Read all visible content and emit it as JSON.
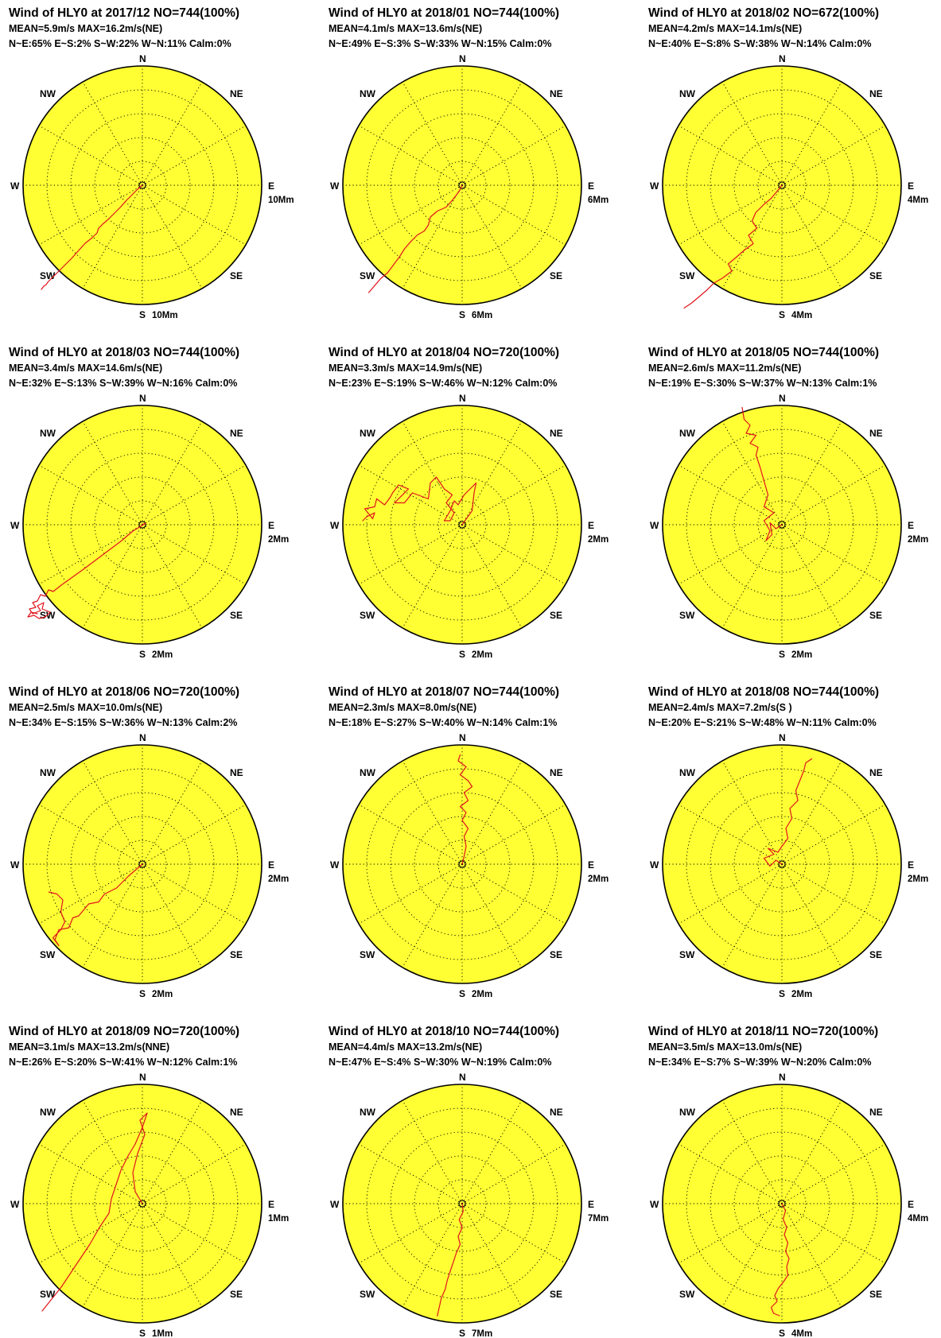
{
  "chart_data": {
    "type": "polar",
    "direction_labels": [
      "N",
      "NE",
      "E",
      "SE",
      "S",
      "SW",
      "W",
      "NW"
    ],
    "charts": [
      {
        "title": "Wind of HLY0 at 2017/12 NO=744(100%)",
        "stats": "MEAN=5.9m/s MAX=16.2m/s(NE)",
        "sectors": "N~E:65% E~S:2% S~W:22% W~N:11% Calm:0%",
        "scale_label": "10Mm",
        "rlim": [
          0,
          15
        ],
        "grid": "rings every 3 Mm, radials every 30 deg",
        "trajectory": [
          [
            0,
            0
          ],
          [
            -0.6,
            -0.5
          ],
          [
            -1.2,
            -1.1
          ],
          [
            -2,
            -1.9
          ],
          [
            -2.8,
            -2.8
          ],
          [
            -3.7,
            -3.7
          ],
          [
            -4.3,
            -4.3
          ],
          [
            -5,
            -4.9
          ],
          [
            -5.5,
            -5.4
          ],
          [
            -5.7,
            -6
          ],
          [
            -6.3,
            -6.6
          ],
          [
            -7.2,
            -7.3
          ],
          [
            -8,
            -8.2
          ],
          [
            -8.9,
            -9.2
          ],
          [
            -9.7,
            -10
          ],
          [
            -10.4,
            -10.7
          ],
          [
            -11.1,
            -11.4
          ],
          [
            -11.7,
            -12
          ],
          [
            -11.9,
            -12.2
          ],
          [
            -12.1,
            -12.5
          ],
          [
            -12.4,
            -12.7
          ],
          [
            -12.7,
            -13.1
          ]
        ]
      },
      {
        "title": "Wind of HLY0 at 2018/01 NO=744(100%)",
        "stats": "MEAN=4.1m/s MAX=13.6m/s(NE)",
        "sectors": "N~E:49% E~S:3% S~W:33% W~N:15% Calm:0%",
        "scale_label": "6Mm",
        "rlim": [
          0,
          12
        ],
        "grid": "rings every 2.4 Mm, radials every 30 deg",
        "trajectory": [
          [
            0,
            0
          ],
          [
            -0.3,
            -0.6
          ],
          [
            -0.9,
            -1.4
          ],
          [
            -1.6,
            -2.2
          ],
          [
            -2.5,
            -2.6
          ],
          [
            -3.2,
            -3.2
          ],
          [
            -3.4,
            -4
          ],
          [
            -3.8,
            -4.6
          ],
          [
            -4.5,
            -5
          ],
          [
            -5.2,
            -5.7
          ],
          [
            -5.8,
            -6.4
          ],
          [
            -6.3,
            -7.2
          ],
          [
            -6.9,
            -8
          ],
          [
            -7.5,
            -8.8
          ],
          [
            -8.2,
            -9.4
          ],
          [
            -8.8,
            -10.1
          ],
          [
            -9.4,
            -10.8
          ]
        ]
      },
      {
        "title": "Wind of HLY0 at 2018/02 NO=672(100%)",
        "stats": "MEAN=4.2m/s MAX=14.1m/s(NE)",
        "sectors": "N~E:40% E~S:8% S~W:38% W~N:14% Calm:0%",
        "scale_label": "4Mm",
        "rlim": [
          0,
          10
        ],
        "grid": "rings every 2 Mm, radials every 30 deg",
        "trajectory": [
          [
            0,
            0
          ],
          [
            -0.4,
            -0.5
          ],
          [
            -0.9,
            -1.1
          ],
          [
            -1.5,
            -1.6
          ],
          [
            -2.2,
            -2.3
          ],
          [
            -2.5,
            -3
          ],
          [
            -2.1,
            -3.6
          ],
          [
            -2.8,
            -4.2
          ],
          [
            -2.4,
            -4.9
          ],
          [
            -3.1,
            -5.4
          ],
          [
            -3.9,
            -6.1
          ],
          [
            -4.5,
            -6.6
          ],
          [
            -4.2,
            -7.2
          ],
          [
            -5,
            -7.8
          ],
          [
            -5.7,
            -8.2
          ],
          [
            -6.3,
            -8.8
          ],
          [
            -7,
            -9.4
          ],
          [
            -7.6,
            -9.9
          ],
          [
            -8.2,
            -10.3
          ]
        ]
      },
      {
        "title": "Wind of HLY0 at 2018/03 NO=744(100%)",
        "stats": "MEAN=3.4m/s MAX=14.6m/s(NE)",
        "sectors": "N~E:32% E~S:13% S~W:39% W~N:16% Calm:0%",
        "scale_label": "2Mm",
        "rlim": [
          0,
          7.5
        ],
        "grid": "rings every 1.5 Mm, radials every 30 deg",
        "trajectory": [
          [
            0,
            0
          ],
          [
            0.2,
            0.1
          ],
          [
            -0.1,
            -0.1
          ],
          [
            -0.6,
            -0.4
          ],
          [
            -1.3,
            -1
          ],
          [
            -2.1,
            -1.6
          ],
          [
            -2.9,
            -2.2
          ],
          [
            -3.7,
            -2.8
          ],
          [
            -4.4,
            -3.3
          ],
          [
            -5.1,
            -3.8
          ],
          [
            -5.6,
            -4.2
          ],
          [
            -5.9,
            -4.1
          ],
          [
            -6.1,
            -4.5
          ],
          [
            -6.4,
            -4.4
          ],
          [
            -6.6,
            -4.8
          ],
          [
            -6.9,
            -4.9
          ],
          [
            -6.7,
            -5.2
          ],
          [
            -7.1,
            -5.3
          ],
          [
            -6.9,
            -5.6
          ],
          [
            -6.4,
            -5.4
          ],
          [
            -6.6,
            -5.1
          ],
          [
            -6.2,
            -4.9
          ],
          [
            -6.3,
            -5.3
          ],
          [
            -5.8,
            -5.5
          ],
          [
            -6.1,
            -5.8
          ],
          [
            -6.5,
            -5.9
          ],
          [
            -6.8,
            -5.7
          ],
          [
            -7.2,
            -5.8
          ],
          [
            -7,
            -5.5
          ],
          [
            -6.6,
            -5.6
          ]
        ]
      },
      {
        "title": "Wind of HLY0 at 2018/04 NO=720(100%)",
        "stats": "MEAN=3.3m/s MAX=14.9m/s(NE)",
        "sectors": "N~E:23% E~S:19% S~W:46% W~N:12% Calm:0%",
        "scale_label": "2Mm",
        "rlim": [
          0,
          6
        ],
        "grid": "rings every 1.2 Mm, radials every 30 deg",
        "trajectory": [
          [
            0,
            0
          ],
          [
            0.5,
            0.7
          ],
          [
            0.6,
            1.6
          ],
          [
            0.7,
            2.1
          ],
          [
            0.1,
            1.5
          ],
          [
            -0.2,
            1
          ],
          [
            -0.4,
            1.2
          ],
          [
            -0.6,
            0.7
          ],
          [
            -0.9,
            0.2
          ],
          [
            -0.6,
            0.2
          ],
          [
            -0.4,
            0.6
          ],
          [
            -0.8,
            1.1
          ],
          [
            -0.5,
            1.5
          ],
          [
            -0.9,
            1.8
          ],
          [
            -1.3,
            2.4
          ],
          [
            -1.6,
            2.1
          ],
          [
            -1.7,
            1.3
          ],
          [
            -2.5,
            1.6
          ],
          [
            -2.9,
            1.1
          ],
          [
            -3.4,
            1.1
          ],
          [
            -2.7,
            1.8
          ],
          [
            -3.2,
            2
          ],
          [
            -3.5,
            1.6
          ],
          [
            -3.6,
            1.4
          ],
          [
            -3.9,
            1
          ],
          [
            -4.3,
            1.3
          ],
          [
            -4.4,
            0.9
          ],
          [
            -4.9,
            0.8
          ],
          [
            -4.5,
            0.3
          ],
          [
            -4.4,
            0.6
          ],
          [
            -4.8,
            0.4
          ],
          [
            -5,
            0.2
          ]
        ]
      },
      {
        "title": "Wind of HLY0 at 2018/05 NO=744(100%)",
        "stats": "MEAN=2.6m/s MAX=11.2m/s(NE)",
        "sectors": "N~E:19% E~S:30% S~W:37% W~N:13% Calm:1%",
        "scale_label": "2Mm",
        "rlim": [
          0,
          6
        ],
        "grid": "rings every 1.2 Mm, radials every 30 deg",
        "trajectory": [
          [
            0,
            0
          ],
          [
            -0.3,
            -0.2
          ],
          [
            -0.6,
            0.1
          ],
          [
            -0.5,
            -0.5
          ],
          [
            -0.8,
            -0.8
          ],
          [
            -0.6,
            -0.3
          ],
          [
            -0.9,
            0.2
          ],
          [
            -0.4,
            0.6
          ],
          [
            -0.9,
            0.9
          ],
          [
            -0.7,
            1.5
          ],
          [
            -0.9,
            2.2
          ],
          [
            -1.1,
            2.9
          ],
          [
            -1.3,
            3.5
          ],
          [
            -1.2,
            3.9
          ],
          [
            -1.6,
            4.1
          ],
          [
            -1.3,
            4.5
          ],
          [
            -1.8,
            4.6
          ],
          [
            -1.6,
            5
          ],
          [
            -1.9,
            5.3
          ],
          [
            -2,
            5.9
          ]
        ]
      },
      {
        "title": "Wind of HLY0 at 2018/06 NO=720(100%)",
        "stats": "MEAN=2.5m/s MAX=10.0m/s(NE)",
        "sectors": "N~E:34% E~S:15% S~W:36% W~N:13% Calm:2%",
        "scale_label": "2Mm",
        "rlim": [
          0,
          6
        ],
        "grid": "rings every 1.2 Mm, radials every 30 deg",
        "trajectory": [
          [
            0,
            0
          ],
          [
            -0.7,
            -0.6
          ],
          [
            -1.3,
            -1.2
          ],
          [
            -1.9,
            -1.5
          ],
          [
            -2.2,
            -1.9
          ],
          [
            -2.7,
            -2
          ],
          [
            -3.2,
            -2.6
          ],
          [
            -3.5,
            -2.7
          ],
          [
            -3.7,
            -3.2
          ],
          [
            -4.2,
            -3.3
          ],
          [
            -4.4,
            -3.8
          ],
          [
            -4.2,
            -4.1
          ],
          [
            -4.5,
            -3.7
          ],
          [
            -4.1,
            -3.3
          ],
          [
            -3.9,
            -2.9
          ],
          [
            -4.1,
            -2.4
          ],
          [
            -4,
            -1.8
          ],
          [
            -4.3,
            -1.5
          ],
          [
            -4.7,
            -1.4
          ]
        ]
      },
      {
        "title": "Wind of HLY0 at 2018/07 NO=744(100%)",
        "stats": "MEAN=2.3m/s MAX=8.0m/s(NE)",
        "sectors": "N~E:18% E~S:27% S~W:40% W~N:14% Calm:1%",
        "scale_label": "2Mm",
        "rlim": [
          0,
          6
        ],
        "grid": "rings every 1.2 Mm, radials every 30 deg",
        "trajectory": [
          [
            0,
            0
          ],
          [
            0.1,
            0.4
          ],
          [
            0.2,
            0.9
          ],
          [
            0.1,
            1.4
          ],
          [
            0.3,
            1.8
          ],
          [
            0,
            2.2
          ],
          [
            0.2,
            2.6
          ],
          [
            -0.1,
            2.9
          ],
          [
            0.3,
            3.2
          ],
          [
            0.1,
            3.6
          ],
          [
            0.5,
            3.9
          ],
          [
            0.3,
            4.2
          ],
          [
            -0.1,
            4.5
          ],
          [
            0.2,
            4.9
          ],
          [
            -0.2,
            5.2
          ],
          [
            -0.1,
            5.5
          ]
        ]
      },
      {
        "title": "Wind of HLY0 at 2018/08 NO=744(100%)",
        "stats": "MEAN=2.4m/s MAX=7.2m/s(S )",
        "sectors": "N~E:20% E~S:21% S~W:48% W~N:11% Calm:0%",
        "scale_label": "2Mm",
        "rlim": [
          0,
          6
        ],
        "grid": "rings every 1.2 Mm, radials every 30 deg",
        "trajectory": [
          [
            0,
            0
          ],
          [
            -0.3,
            0.2
          ],
          [
            -0.6,
            -0.1
          ],
          [
            -0.9,
            0.3
          ],
          [
            -0.4,
            0.5
          ],
          [
            -0.7,
            0.8
          ],
          [
            -0.2,
            0.6
          ],
          [
            0,
            0.9
          ],
          [
            0.3,
            1.3
          ],
          [
            0.2,
            1.8
          ],
          [
            0.5,
            2.3
          ],
          [
            0.4,
            2.8
          ],
          [
            0.8,
            3.2
          ],
          [
            0.7,
            3.7
          ],
          [
            0.9,
            4.2
          ],
          [
            1.1,
            4.7
          ],
          [
            1.2,
            5.1
          ],
          [
            1.5,
            5.3
          ]
        ]
      },
      {
        "title": "Wind of HLY0 at 2018/09 NO=720(100%)",
        "stats": "MEAN=3.1m/s MAX=13.2m/s(NNE)",
        "sectors": "N~E:26% E~S:20% S~W:41% W~N:12% Calm:1%",
        "scale_label": "1Mm",
        "rlim": [
          0,
          5
        ],
        "grid": "rings every 1 Mm, radials every 30 deg",
        "trajectory": [
          [
            0,
            0
          ],
          [
            -0.3,
            0.5
          ],
          [
            -0.4,
            1.3
          ],
          [
            -0.2,
            2.1
          ],
          [
            0.1,
            2.9
          ],
          [
            -0.1,
            3.5
          ],
          [
            0.2,
            3.8
          ],
          [
            0,
            3.2
          ],
          [
            -0.3,
            2.5
          ],
          [
            -0.6,
            2
          ],
          [
            -0.9,
            1.4
          ],
          [
            -1.1,
            0.8
          ],
          [
            -1.3,
            0.2
          ],
          [
            -1.4,
            -0.4
          ],
          [
            -1.8,
            -1
          ],
          [
            -2.2,
            -1.7
          ],
          [
            -2.6,
            -2.3
          ],
          [
            -3,
            -2.9
          ],
          [
            -3.4,
            -3.5
          ],
          [
            -3.8,
            -4
          ],
          [
            -4.2,
            -4.5
          ]
        ]
      },
      {
        "title": "Wind of HLY0 at 2018/10 NO=744(100%)",
        "stats": "MEAN=4.4m/s MAX=13.2m/s(NE)",
        "sectors": "N~E:47% E~S:4% S~W:30% W~N:19% Calm:0%",
        "scale_label": "7Mm",
        "rlim": [
          0,
          12
        ],
        "grid": "rings every 2.4 Mm, radials every 30 deg",
        "trajectory": [
          [
            0,
            0
          ],
          [
            0.1,
            -0.8
          ],
          [
            -0.3,
            -1.6
          ],
          [
            0,
            -2.4
          ],
          [
            -0.4,
            -3.3
          ],
          [
            -0.2,
            -4.1
          ],
          [
            -0.6,
            -5
          ],
          [
            -0.9,
            -5.9
          ],
          [
            -1.2,
            -6.8
          ],
          [
            -1.5,
            -7.7
          ],
          [
            -1.7,
            -8.6
          ],
          [
            -2.1,
            -9.5
          ],
          [
            -2.3,
            -10.4
          ],
          [
            -2.5,
            -11.3
          ]
        ]
      },
      {
        "title": "Wind of HLY0 at 2018/11 NO=720(100%)",
        "stats": "MEAN=3.5m/s MAX=13.0m/s(NE)",
        "sectors": "N~E:34% E~S:7% S~W:39% W~N:20% Calm:0%",
        "scale_label": "4Mm",
        "rlim": [
          0,
          10
        ],
        "grid": "rings every 2 Mm, radials every 30 deg",
        "trajectory": [
          [
            0,
            0
          ],
          [
            0.3,
            -0.6
          ],
          [
            0.1,
            -1.3
          ],
          [
            0.4,
            -2
          ],
          [
            0.2,
            -2.6
          ],
          [
            0.5,
            -3.3
          ],
          [
            0.3,
            -4
          ],
          [
            0.6,
            -4.6
          ],
          [
            0.4,
            -5.3
          ],
          [
            0.5,
            -6
          ],
          [
            0.1,
            -6.6
          ],
          [
            -0.3,
            -7.1
          ],
          [
            -0.6,
            -7.7
          ],
          [
            -0.4,
            -8.2
          ],
          [
            -0.9,
            -8.7
          ],
          [
            -0.7,
            -9.2
          ],
          [
            -0.2,
            -9.4
          ]
        ]
      }
    ]
  }
}
